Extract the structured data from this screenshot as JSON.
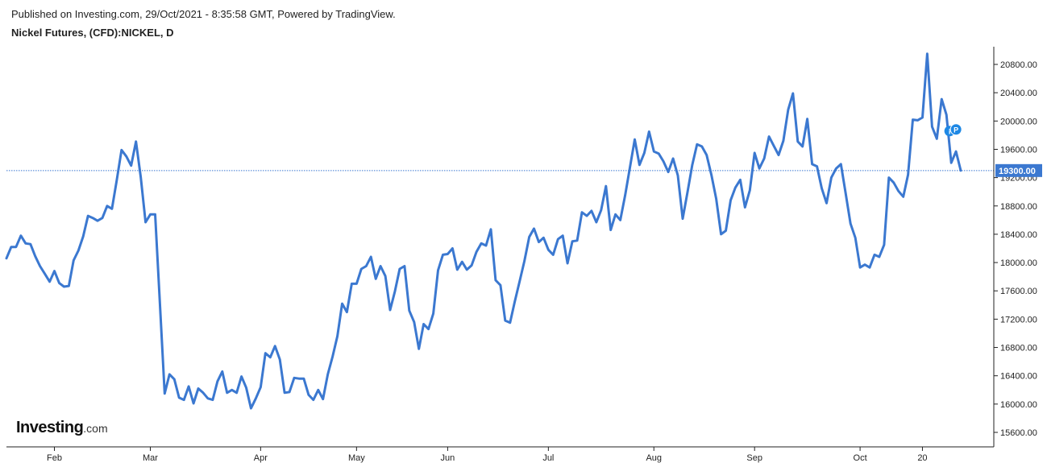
{
  "header": {
    "published": "Published on Investing.com, 29/Oct/2021 - 8:35:58 GMT, Powered by TradingView.",
    "symbol": "Nickel Futures, (CFD):NICKEL, D"
  },
  "logo": {
    "name": "Investing",
    "suffix": ".com"
  },
  "colors": {
    "line": "#3b78d0",
    "price_label_bg": "#3b78d0",
    "price_label_text": "#ffffff",
    "axis": "#222222",
    "marker": "#1e88e5"
  },
  "chart_data": {
    "type": "line",
    "title": "Nickel Futures, (CFD):NICKEL, D",
    "grid": false,
    "ylim": [
      15400,
      21000
    ],
    "yticks": [
      15600,
      16000,
      16400,
      16800,
      17200,
      17600,
      18000,
      18400,
      18800,
      19200,
      19600,
      20000,
      20400,
      20800
    ],
    "ytick_labels": [
      "15600.00",
      "16000.00",
      "16400.00",
      "16800.00",
      "17200.00",
      "17600.00",
      "18000.00",
      "18400.00",
      "18800.00",
      "19200.00",
      "19600.00",
      "20000.00",
      "20400.00",
      "20800.00"
    ],
    "xticks": [
      {
        "label": "Feb",
        "index": 10
      },
      {
        "label": "Mar",
        "index": 30
      },
      {
        "label": "Apr",
        "index": 53
      },
      {
        "label": "May",
        "index": 73
      },
      {
        "label": "Jun",
        "index": 92
      },
      {
        "label": "Jul",
        "index": 113
      },
      {
        "label": "Aug",
        "index": 135
      },
      {
        "label": "Sep",
        "index": 156
      },
      {
        "label": "Oct",
        "index": 178
      },
      {
        "label": "20",
        "index": 191
      }
    ],
    "last_price": 19300,
    "last_price_label": "19300.00",
    "series": [
      {
        "values": [
          18060,
          18220,
          18220,
          18380,
          18270,
          18260,
          18090,
          17950,
          17840,
          17730,
          17880,
          17710,
          17660,
          17670,
          18030,
          18170,
          18370,
          18660,
          18630,
          18590,
          18630,
          18800,
          18760,
          19160,
          19590,
          19500,
          19370,
          19710,
          19210,
          18570,
          18680,
          18680,
          17420,
          16150,
          16420,
          16350,
          16090,
          16060,
          16250,
          16010,
          16220,
          16160,
          16080,
          16060,
          16320,
          16460,
          16160,
          16200,
          16160,
          16390,
          16230,
          15940,
          16080,
          16240,
          16720,
          16660,
          16820,
          16630,
          16160,
          16170,
          16370,
          16360,
          16360,
          16130,
          16060,
          16200,
          16070,
          16420,
          16670,
          16960,
          17420,
          17300,
          17700,
          17700,
          17910,
          17950,
          18080,
          17770,
          17950,
          17810,
          17330,
          17590,
          17910,
          17950,
          17320,
          17160,
          16780,
          17130,
          17060,
          17280,
          17890,
          18110,
          18120,
          18200,
          17900,
          18010,
          17900,
          17960,
          18150,
          18270,
          18240,
          18470,
          17750,
          17680,
          17180,
          17150,
          17450,
          17730,
          18020,
          18360,
          18480,
          18290,
          18350,
          18180,
          18110,
          18330,
          18380,
          17990,
          18300,
          18310,
          18710,
          18660,
          18730,
          18570,
          18740,
          19080,
          18460,
          18680,
          18600,
          18950,
          19340,
          19740,
          19380,
          19550,
          19850,
          19570,
          19540,
          19430,
          19280,
          19470,
          19230,
          18620,
          18990,
          19380,
          19670,
          19640,
          19520,
          19240,
          18900,
          18400,
          18450,
          18880,
          19060,
          19170,
          18780,
          19020,
          19550,
          19330,
          19470,
          19780,
          19650,
          19520,
          19720,
          20160,
          20390,
          19710,
          19640,
          20030,
          19390,
          19360,
          19050,
          18840,
          19200,
          19330,
          19390,
          18970,
          18550,
          18350,
          17930,
          17970,
          17930,
          18110,
          18080,
          18250,
          19200,
          19130,
          19010,
          18930,
          19240,
          20020,
          20010,
          20050,
          20950,
          19920,
          19750,
          20310,
          20090,
          19410,
          19570,
          19300
        ]
      }
    ]
  }
}
